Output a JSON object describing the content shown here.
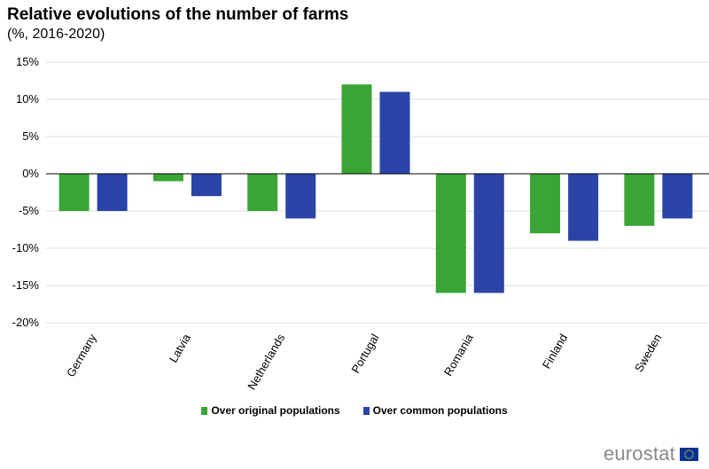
{
  "title": "Relative evolutions of the number of farms",
  "subtitle": "(%, 2016-2020)",
  "logo": {
    "text": "eurostat",
    "icon": "eu-flag-icon"
  },
  "colors": {
    "original": "#3aa535",
    "common": "#2a44a8",
    "grid": "#dddddd",
    "axis": "#000000",
    "eu_blue": "#003399",
    "eu_star": "#ffcc00"
  },
  "chart_data": {
    "type": "bar",
    "title": "Relative evolutions of the number of farms",
    "subtitle": "(%, 2016-2020)",
    "xlabel": "",
    "ylabel": "",
    "ylim": [
      -20,
      15
    ],
    "yticks": [
      15,
      10,
      5,
      0,
      -5,
      -10,
      -15,
      -20
    ],
    "ytick_labels": [
      "15%",
      "10%",
      "5%",
      "0%",
      "-5%",
      "-10%",
      "-15%",
      "-20%"
    ],
    "grid": true,
    "legend_position": "bottom",
    "categories": [
      "Germany",
      "Latvia",
      "Netherlands",
      "Portugal",
      "Romania",
      "Finland",
      "Sweden"
    ],
    "series": [
      {
        "name": "Over original populations",
        "color": "#3aa535",
        "values": [
          -5,
          -1,
          -5,
          12,
          -16,
          -8,
          -7
        ]
      },
      {
        "name": "Over common populations",
        "color": "#2a44a8",
        "values": [
          -5,
          -3,
          -6,
          11,
          -16,
          -9,
          -6
        ]
      }
    ]
  }
}
